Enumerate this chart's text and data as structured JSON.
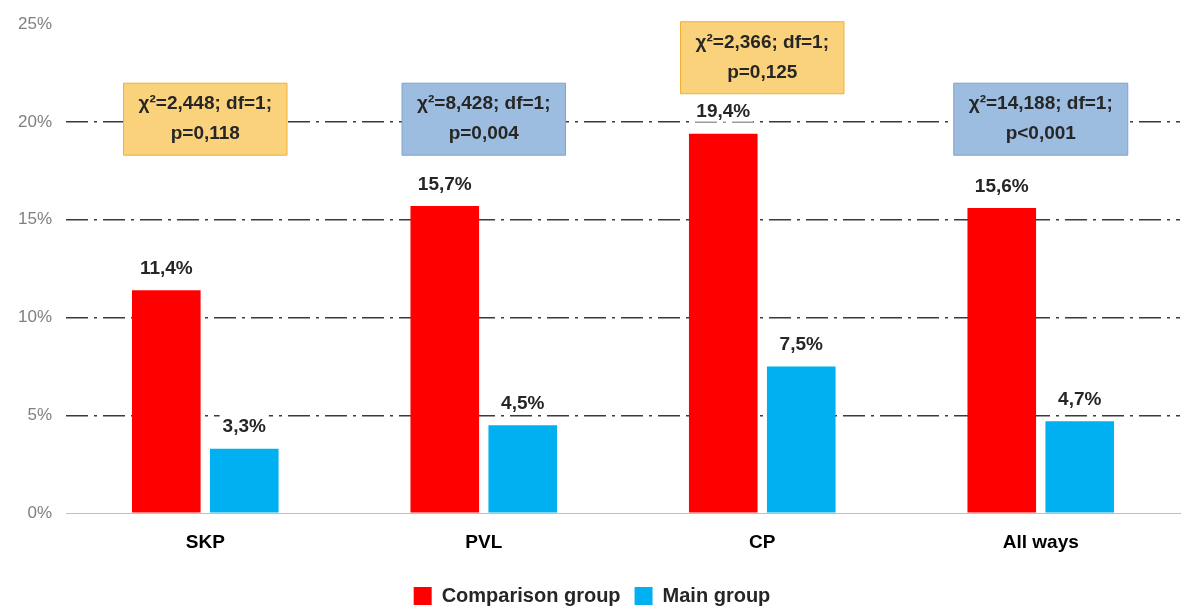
{
  "chart_data": {
    "type": "bar",
    "categories": [
      "SKP",
      "PVL",
      "CP",
      "All ways"
    ],
    "series": [
      {
        "name": "Comparison group",
        "color": "#ff0000",
        "values": [
          11.4,
          15.7,
          19.4,
          15.6
        ],
        "value_labels": [
          "11,4%",
          "15,7%",
          "19,4%",
          "15,6%"
        ]
      },
      {
        "name": "Main group",
        "color": "#00b0f0",
        "values": [
          3.3,
          4.5,
          7.5,
          4.7
        ],
        "value_labels": [
          "3,3%",
          "4,5%",
          "7,5%",
          "4,7%"
        ]
      }
    ],
    "ylim": [
      0,
      25
    ],
    "yticks": [
      {
        "value": 0,
        "label": "0%"
      },
      {
        "value": 5,
        "label": "5%"
      },
      {
        "value": 10,
        "label": "10%"
      },
      {
        "value": 15,
        "label": "15%"
      },
      {
        "value": 20,
        "label": "20%"
      },
      {
        "value": 25,
        "label": "25%"
      }
    ],
    "grid": "y",
    "legend": "bottom",
    "annotations": [
      "χ²=2,448; df=1;\np=0,118",
      "χ²=8,428; df=1;\np=0,004",
      "χ²=2,366; df=1;\np=0,125",
      "χ²=14,188; df=1;\np<0,001"
    ]
  }
}
